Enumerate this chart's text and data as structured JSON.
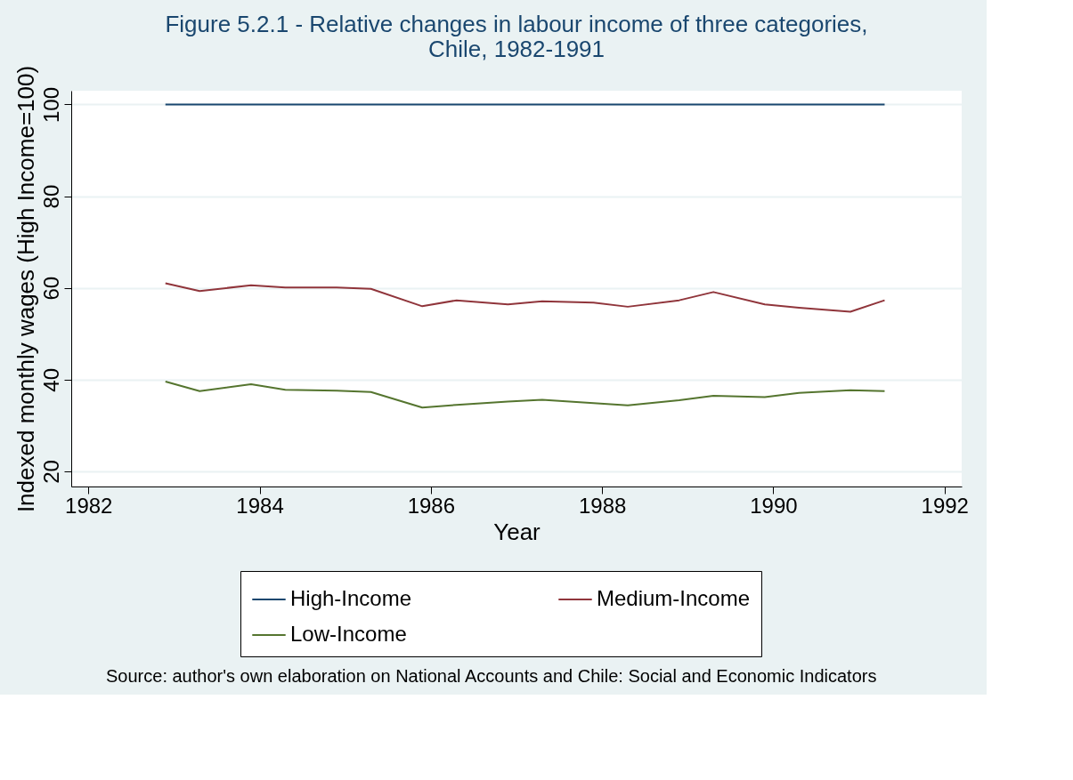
{
  "chart_data": {
    "type": "line",
    "title": [
      "Figure 5.2.1 - Relative changes in labour income of three categories,",
      "Chile, 1982-1991"
    ],
    "xlabel": "Year",
    "ylabel": "Indexed monthly wages (High Income=100)",
    "x": [
      1982.9,
      1983.3,
      1983.9,
      1984.3,
      1984.9,
      1985.3,
      1985.9,
      1986.3,
      1986.9,
      1987.3,
      1987.9,
      1988.3,
      1988.9,
      1989.3,
      1989.9,
      1990.3,
      1990.9,
      1991.3
    ],
    "series": [
      {
        "name": "High-Income",
        "color": "#1a476f",
        "values": [
          100,
          100,
          100,
          100,
          100,
          100,
          100,
          100,
          100,
          100,
          100,
          100,
          100,
          100,
          100,
          100,
          100,
          100
        ]
      },
      {
        "name": "Medium-Income",
        "color": "#90353b",
        "values": [
          61,
          59.3,
          60.6,
          60.1,
          60.1,
          59.8,
          56,
          57.3,
          56.4,
          57.1,
          56.8,
          55.9,
          57.3,
          59.1,
          56.4,
          55.7,
          54.8,
          57.3
        ]
      },
      {
        "name": "Low-Income",
        "color": "#55752f",
        "values": [
          39.6,
          37.5,
          39,
          37.8,
          37.6,
          37.3,
          33.9,
          34.5,
          35.2,
          35.6,
          34.9,
          34.4,
          35.5,
          36.5,
          36.2,
          37.1,
          37.7,
          37.5
        ]
      }
    ],
    "xlim": [
      1981.8,
      1992.2
    ],
    "xticks": [
      1982,
      1984,
      1986,
      1988,
      1990,
      1992
    ],
    "ylim": [
      16.7,
      103
    ],
    "yticks": [
      20,
      40,
      60,
      80,
      100
    ],
    "grid": "y",
    "legend": "bottom",
    "marker": "none",
    "line_style": "solid",
    "annotations": [
      "Source: author's own elaboration on National Accounts and Chile: Social and Economic Indicators"
    ]
  }
}
